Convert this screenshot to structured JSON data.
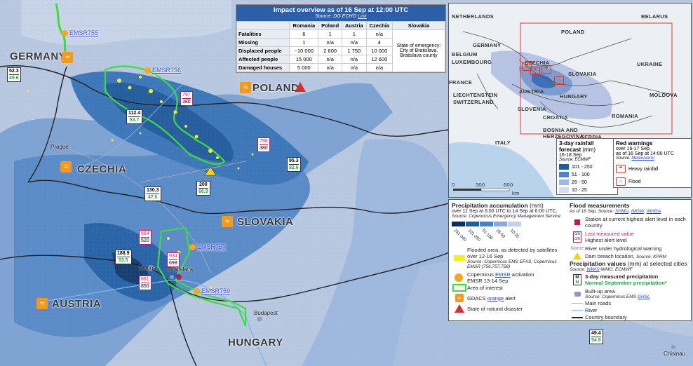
{
  "impact": {
    "title": "Impact overview as of 16 Sep at 12:00 UTC",
    "source_prefix": "Source: DG ECHO",
    "source_link": "Link",
    "columns": [
      "",
      "Romania",
      "Poland",
      "Austria",
      "Czechia",
      "Slovakia"
    ],
    "rows": [
      {
        "label": "Fatalities",
        "values": [
          "6",
          "1",
          "1",
          "n/a"
        ]
      },
      {
        "label": "Missing",
        "values": [
          "1",
          "n/a",
          "n/a",
          "4"
        ]
      },
      {
        "label": "Displaced people",
        "values": [
          "~10 000",
          "2 600",
          "1 750",
          "10 000"
        ]
      },
      {
        "label": "Affected people",
        "values": [
          "15 000",
          "n/a",
          "n/a",
          "12 600"
        ]
      },
      {
        "label": "Damaged houses",
        "values": [
          "5 000",
          "n/a",
          "n/a",
          "n/a"
        ]
      }
    ],
    "slovakia_note": "State of emergency: City of Bratislava, Bratislava county"
  },
  "map": {
    "countries": [
      {
        "name": "GERMANY"
      },
      {
        "name": "POLAND"
      },
      {
        "name": "CZECHIA"
      },
      {
        "name": "SLOVAKIA"
      },
      {
        "name": "AUSTRIA"
      },
      {
        "name": "HUNGARY"
      }
    ],
    "cities": [
      "Prague",
      "Vienna",
      "Bratislava",
      "Budapest",
      "Chisinau"
    ],
    "emsr": [
      "EMSR755",
      "EMSR756",
      "EMSR757",
      "EMSR759"
    ],
    "precip_boxes": [
      {
        "m": "52.3",
        "n": "49.6"
      },
      {
        "m": "112.4",
        "n": "53.7"
      },
      {
        "m": "130.3",
        "n": "47.0"
      },
      {
        "m": "200",
        "n": "68.9"
      },
      {
        "m": "95.3",
        "n": "82.6"
      },
      {
        "m": "188.9",
        "n": "53.5"
      },
      {
        "m": "49.4",
        "n": "54.9"
      }
    ],
    "gauges": [
      {
        "last": "797",
        "high": "380"
      },
      {
        "last": "798",
        "high": "380"
      },
      {
        "last": "564",
        "high": "520"
      },
      {
        "last": "934",
        "high": "698"
      },
      {
        "last": "881",
        "high": "850"
      }
    ]
  },
  "inset": {
    "labels": [
      "NETHERLANDS",
      "BELARUS",
      "POLAND",
      "GERMANY",
      "BELGIUM",
      "LUXEMBOURG",
      "CZECHIA",
      "UKRAINE",
      "SLOVAKIA",
      "FRANCE",
      "LIECHTENSTEIN",
      "SWITZERLAND",
      "AUSTRIA",
      "MOLDOVA",
      "HUNGARY",
      "SLOVENIA",
      "CROATIA",
      "ROMANIA",
      "BOSNIA AND HERZEGOVINA",
      "SERBIA",
      "ITALY"
    ],
    "scale": [
      "0",
      "300",
      "600",
      "km"
    ],
    "rain_legend": {
      "title": "3-day rainfall forecast",
      "unit": "(mm)",
      "dates": "16-18 Sep",
      "source": "Source: ECMWF",
      "classes": [
        {
          "label": "101 - 250",
          "color": "#1d5d9b"
        },
        {
          "label": "51 - 100",
          "color": "#4c86c6"
        },
        {
          "label": "26 - 50",
          "color": "#9bb8de"
        },
        {
          "label": "10 - 25",
          "color": "#d2dcef"
        }
      ]
    },
    "warn_legend": {
      "title": "Red warnings",
      "subtitle": "over 16-17 Sep,",
      "asof": "as of 16 Sep at 14:00 UTC",
      "source_prefix": "Source:",
      "source_link": "MeteoAlarm",
      "items": [
        "Heavy rainfall",
        "Flood"
      ]
    }
  },
  "legend": {
    "precip_title": "Precipitation accumulation",
    "precip_unit": "(mm)",
    "precip_period": "over 11 Sep at 6:00 UTC to 14 Sep at 6:00 UTC,",
    "precip_source": "Source: Copernicus Emergency Management Service",
    "precip_classes": [
      {
        "label": "251-340",
        "color": "#0e2f5a"
      },
      {
        "label": "101-250",
        "color": "#225d96"
      },
      {
        "label": "51-100",
        "color": "#4b82bf"
      },
      {
        "label": "26-50",
        "color": "#8aaad7"
      },
      {
        "label": "10-25",
        "color": "#c4d1ea"
      }
    ],
    "flooded_title": "Flooded area, as detected by satellites over 12-16 Sep",
    "flooded_source": "Source: Copernicus EMS EFAS, Copernicus EMSR (756,757,758)",
    "copernicus_prefix": "Copernicus",
    "copernicus_link": "EMSR",
    "copernicus_suffix": "activation",
    "copernicus_dates": "EMSR 13-14 Sep",
    "aoi": "Area of interest",
    "gdacs_prefix": "GDACS",
    "gdacs_link": "orange",
    "gdacs_suffix": "alert",
    "natural_disaster": "State of natural disaster",
    "flood_title": "Flood measurements",
    "flood_asof": "As of 16 Sep, Source:",
    "flood_sources": [
      "SHMU",
      "IMGW",
      "INHGA"
    ],
    "station": "Station at current highest alert level in each country",
    "last_measured": "Last measured value",
    "highest_alert": "Highest alert level",
    "cm": "cm",
    "river_warning_name": "Name",
    "river_warning": "River under hydrological warning",
    "dam_breach": "Dam breach location,",
    "dam_source": "Source: KPRM",
    "pv_title": "Precipitation values",
    "pv_sub": "(mm) at selected cities",
    "pv_source_link": "WWIS",
    "pv_source_rest": "-WMO, ECMWF",
    "m_letter": "M",
    "n_letter": "N",
    "measured": "3-day measured precipitation",
    "normal": "Normal September precipitation*",
    "builtup": "Built-up area",
    "builtup_source_prefix": "Source: Copernicus EMS",
    "builtup_source_link": "GHSL",
    "main_roads": "Main roads",
    "river": "River",
    "boundary": "Country boundary"
  }
}
